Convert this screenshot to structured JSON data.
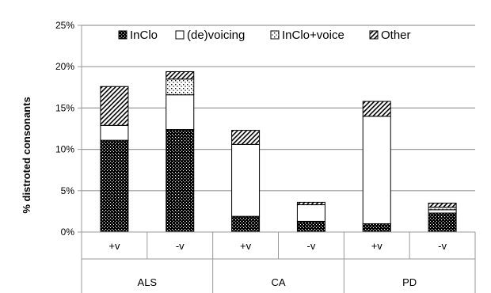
{
  "chart_data": {
    "type": "bar",
    "stacked": true,
    "ylabel": "% distroted consonants",
    "ylim": [
      0,
      25
    ],
    "y_ticks": [
      "0%",
      "5%",
      "10%",
      "15%",
      "20%",
      "25%"
    ],
    "y_tick_values": [
      0,
      5,
      10,
      15,
      20,
      25
    ],
    "grid": true,
    "legend_position": "top",
    "groups": [
      {
        "label": "ALS",
        "categories": [
          "+v",
          "-v"
        ]
      },
      {
        "label": "CA",
        "categories": [
          "+v",
          "-v"
        ]
      },
      {
        "label": "PD",
        "categories": [
          "+v",
          "-v"
        ]
      }
    ],
    "categories": [
      "+v",
      "-v",
      "+v",
      "-v",
      "+v",
      "-v"
    ],
    "series": [
      {
        "name": "InClo",
        "values": [
          11.1,
          12.4,
          1.9,
          1.3,
          1.0,
          2.3
        ],
        "pattern": "dense-dots"
      },
      {
        "name": "(de)voicing",
        "values": [
          1.8,
          4.2,
          8.7,
          2.0,
          13.0,
          0.4
        ],
        "pattern": "white"
      },
      {
        "name": "InClo+voice",
        "values": [
          0.0,
          1.9,
          0.0,
          0.0,
          0.0,
          0.3
        ],
        "pattern": "sparse-dots"
      },
      {
        "name": "Other",
        "values": [
          4.7,
          0.9,
          1.7,
          0.3,
          1.8,
          0.5
        ],
        "pattern": "hatch"
      }
    ]
  }
}
